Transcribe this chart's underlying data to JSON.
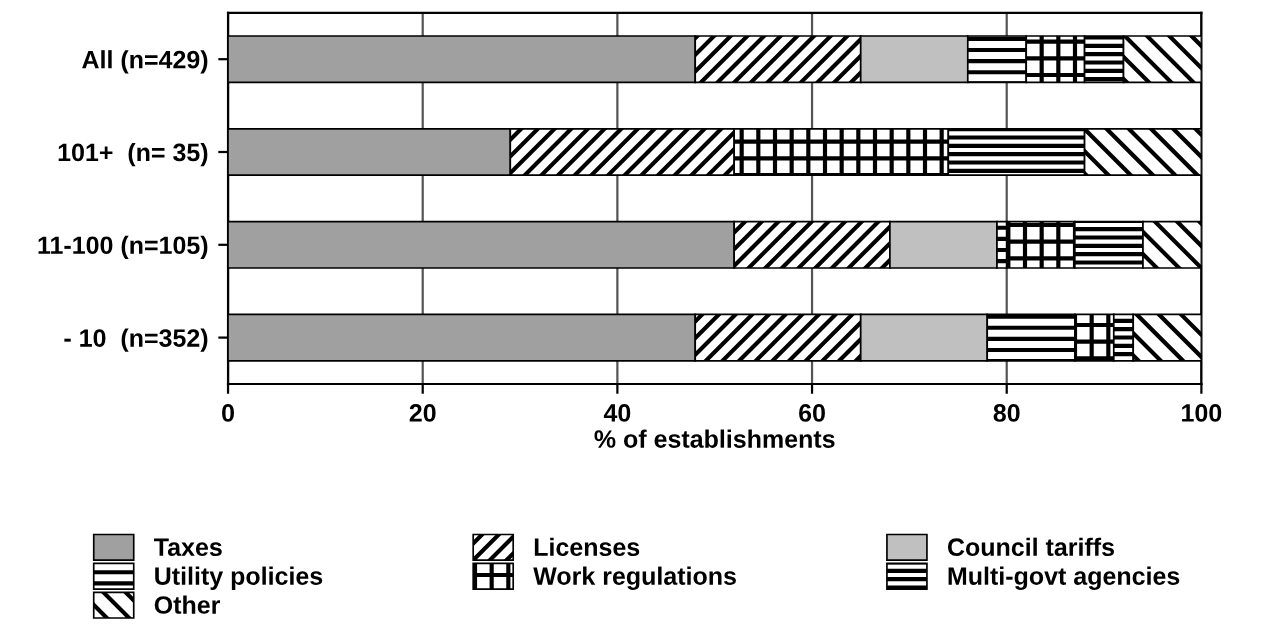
{
  "chart_data": {
    "type": "bar",
    "orientation": "horizontal",
    "stacked": true,
    "categories": [
      "All (n=429)",
      "101+  (n= 35)",
      "11-100 (n=105)",
      "- 10  (n=352)"
    ],
    "series": [
      {
        "name": "Taxes",
        "color": "#a0a0a0",
        "values": [
          48,
          29,
          52,
          48
        ]
      },
      {
        "name": "Licenses",
        "color": "#000000",
        "values": [
          17,
          23,
          16,
          17
        ]
      },
      {
        "name": "Council tariffs",
        "color": "#c0c0c0",
        "values": [
          11,
          null,
          11,
          13
        ]
      },
      {
        "name": "Utility policies",
        "color": "#000000",
        "values": [
          6,
          null,
          1,
          9
        ]
      },
      {
        "name": "Work regulations",
        "color": "#000000",
        "values": [
          6,
          22,
          7,
          4
        ]
      },
      {
        "name": "Multi-govt agencies",
        "color": "#000000",
        "values": [
          4,
          14,
          7,
          2
        ]
      },
      {
        "name": "Other",
        "color": "#000000",
        "values": [
          8,
          12,
          6,
          7
        ]
      }
    ],
    "xlabel": "% of establishments",
    "xlim": [
      0,
      100
    ],
    "xticks": [
      0,
      20,
      40,
      60,
      80,
      100
    ],
    "grid": "x",
    "legend": "bottom"
  }
}
